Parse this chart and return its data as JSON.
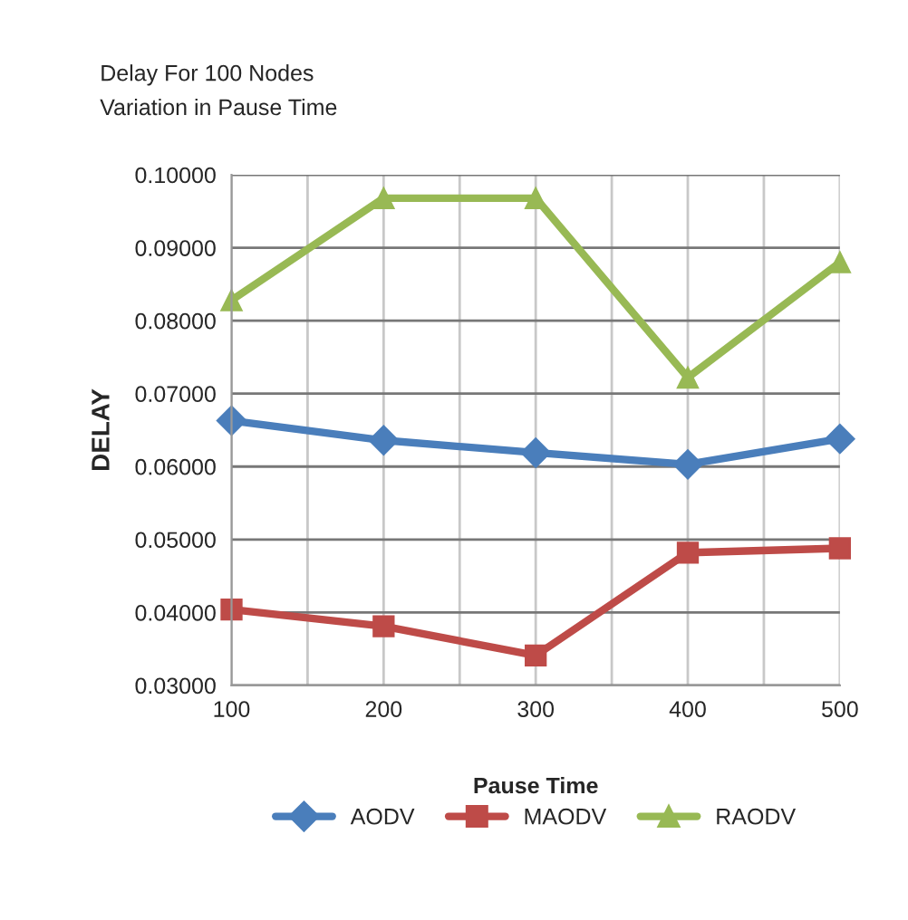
{
  "chart_data": {
    "type": "line",
    "title": "Delay For 100 Nodes\nVariation in Pause Time",
    "xlabel": "Pause Time",
    "ylabel": "DELAY",
    "x": [
      100,
      200,
      300,
      400,
      500
    ],
    "series": [
      {
        "name": "AODV",
        "color": "#4a7ebb",
        "marker": "diamond",
        "values": [
          0.0663,
          0.0636,
          0.0619,
          0.0603,
          0.0638
        ]
      },
      {
        "name": "MAODV",
        "color": "#be4b48",
        "marker": "square",
        "values": [
          0.0404,
          0.0381,
          0.0341,
          0.0482,
          0.0488
        ]
      },
      {
        "name": "RAODV",
        "color": "#98b954",
        "marker": "triangle",
        "values": [
          0.0828,
          0.0968,
          0.0968,
          0.0722,
          0.088
        ]
      }
    ],
    "xlim": [
      100,
      500
    ],
    "xticks": [
      100,
      {
        "value": 150,
        "label": null
      },
      200,
      {
        "value": 250,
        "label": null
      },
      300,
      {
        "value": 350,
        "label": null
      },
      400,
      {
        "value": 450,
        "label": null
      },
      500
    ],
    "ylim": [
      0.03,
      0.1
    ],
    "yticks": [
      {
        "value": 0.03,
        "label": "0.03000"
      },
      {
        "value": 0.04,
        "label": "0.04000"
      },
      {
        "value": 0.05,
        "label": "0.05000"
      },
      {
        "value": 0.06,
        "label": "0.06000"
      },
      {
        "value": 0.07,
        "label": "0.07000"
      },
      {
        "value": 0.08,
        "label": "0.08000"
      },
      {
        "value": 0.09,
        "label": "0.09000"
      },
      {
        "value": 0.1,
        "label": "0.10000"
      }
    ],
    "grid": true,
    "legend": "bottom",
    "line_style": "solid"
  }
}
